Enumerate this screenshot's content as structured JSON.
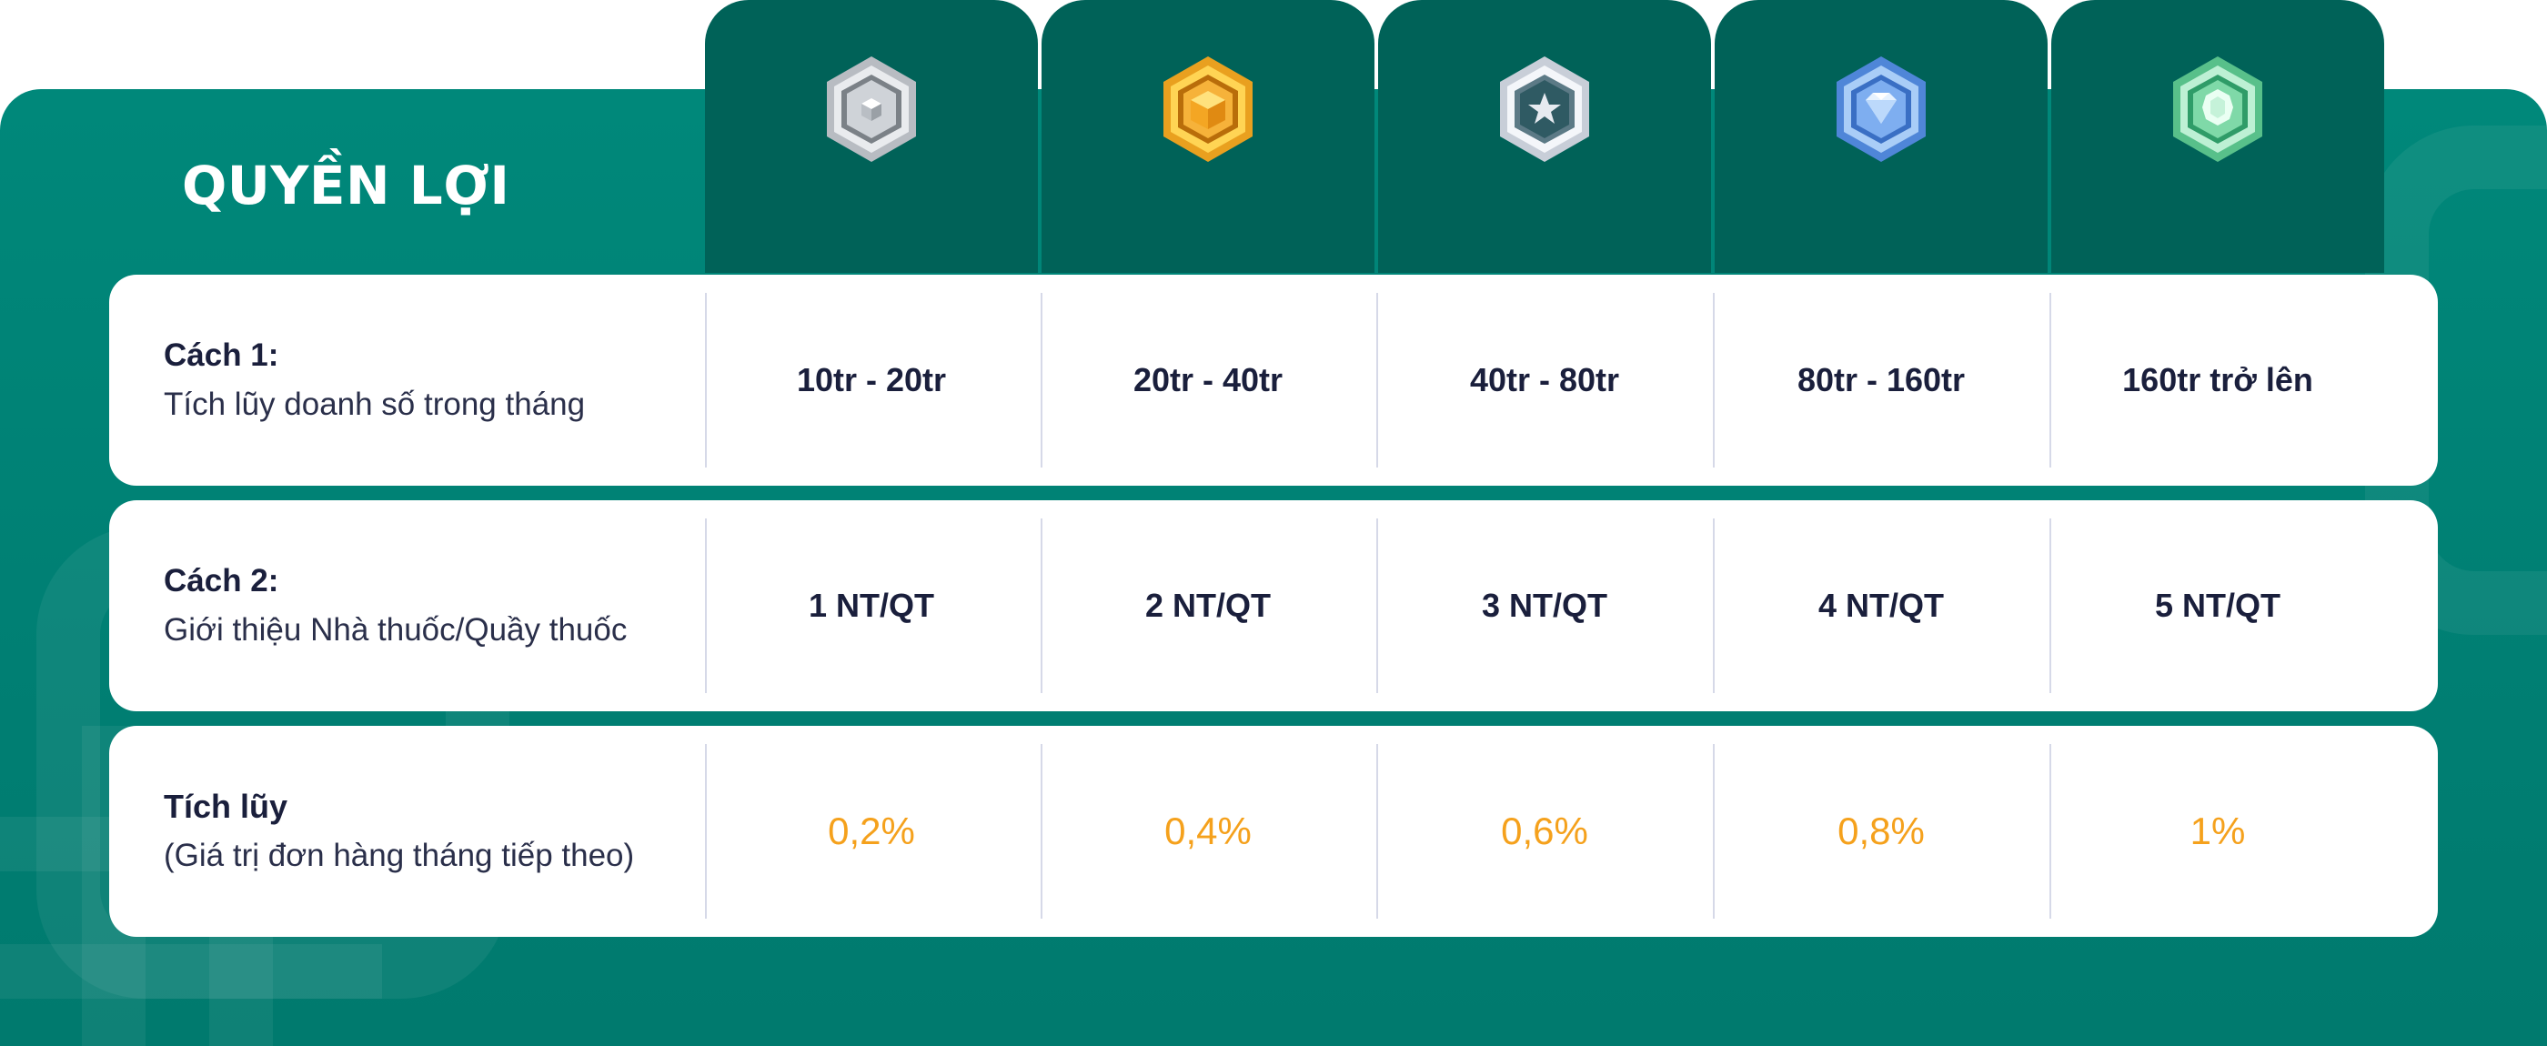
{
  "title": "QUYỀN LỢI",
  "tiers": [
    {
      "icon": "silver-hexagon-cube-icon",
      "color": "#c9cdd2"
    },
    {
      "icon": "gold-hexagon-cube-icon",
      "color": "#f7b731"
    },
    {
      "icon": "platinum-hexagon-star-icon",
      "color": "#dfe3ea"
    },
    {
      "icon": "diamond-hexagon-icon",
      "color": "#6da8f0"
    },
    {
      "icon": "emerald-hexagon-icon",
      "color": "#7fd9a8"
    }
  ],
  "rows": [
    {
      "label_head": "Cách 1:",
      "label_sub": "Tích lũy doanh số trong tháng",
      "values": [
        "10tr - 20tr",
        "20tr - 40tr",
        "40tr - 80tr",
        "80tr - 160tr",
        "160tr trở lên"
      ]
    },
    {
      "label_head": "Cách 2:",
      "label_sub": "Giới thiệu Nhà thuốc/Quầy thuốc",
      "values": [
        "1 NT/QT",
        "2 NT/QT",
        "3 NT/QT",
        "4 NT/QT",
        "5 NT/QT"
      ]
    },
    {
      "label_head": "Tích lũy",
      "label_sub": "(Giá trị đơn hàng tháng tiếp theo)",
      "values": [
        "0,2%",
        "0,4%",
        "0,6%",
        "0,8%",
        "1%"
      ]
    }
  ],
  "colors": {
    "panel": "#00887a",
    "tab": "#006258",
    "accent_orange": "#f5a11c",
    "text_dark": "#1a1f3c"
  }
}
